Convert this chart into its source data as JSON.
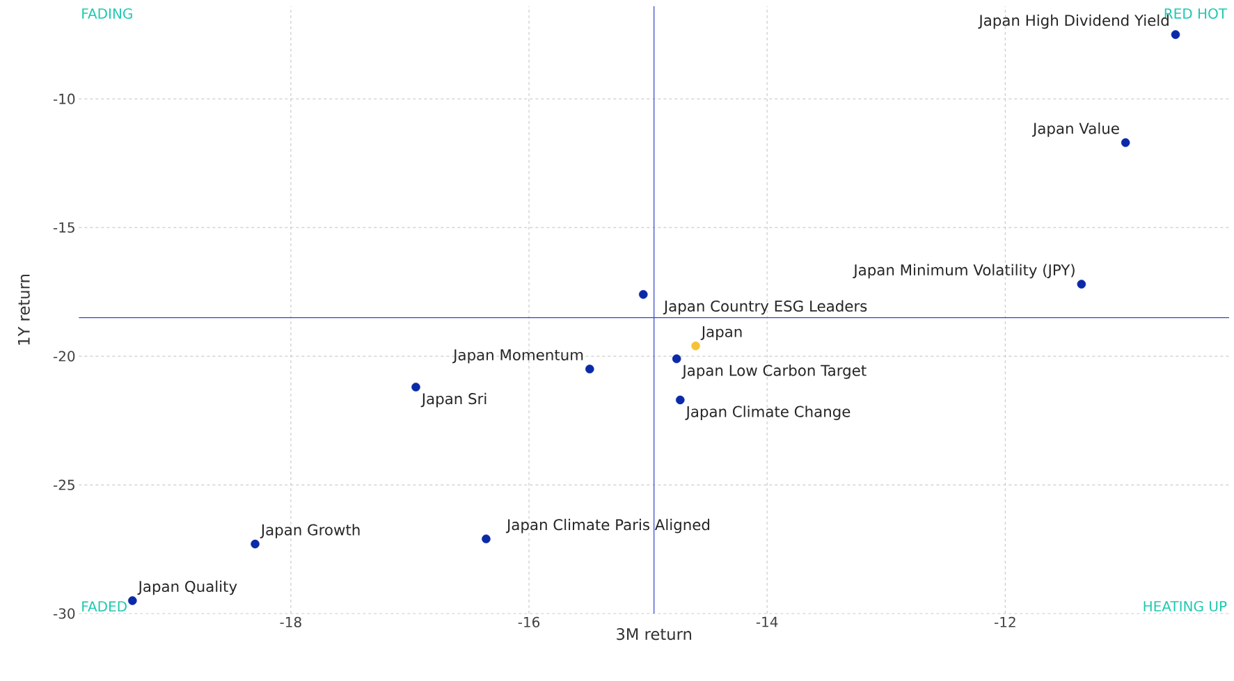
{
  "chart_data": {
    "type": "scatter",
    "xlabel": "3M return",
    "ylabel": "1Y return",
    "x": [
      -10.57,
      -10.99,
      -11.36,
      -15.04,
      -14.6,
      -14.76,
      -14.73,
      -15.49,
      -16.95,
      -16.36,
      -18.3,
      -19.33
    ],
    "values": [
      -7.5,
      -11.7,
      -17.2,
      -17.6,
      -19.6,
      -20.1,
      -21.7,
      -20.5,
      -21.2,
      -27.1,
      -27.3,
      -29.5
    ],
    "colors": [
      "#0a2aa8",
      "#0a2aa8",
      "#0a2aa8",
      "#0a2aa8",
      "#f7c236",
      "#0a2aa8",
      "#0a2aa8",
      "#0a2aa8",
      "#0a2aa8",
      "#0a2aa8",
      "#0a2aa8",
      "#0a2aa8"
    ],
    "marker": "circle",
    "grid": true,
    "xlim": [
      -19.78,
      -10.12
    ],
    "ylim": [
      -30,
      -6.4
    ],
    "xticks": [
      -18,
      -16,
      -14,
      -12
    ],
    "yticks": [
      -30,
      -25,
      -20,
      -15,
      -10
    ],
    "ref_lines": [
      {
        "axis": "x",
        "value": -14.95,
        "color": "#3344cc"
      },
      {
        "axis": "y",
        "value": -18.5,
        "color": "#3344cc"
      }
    ],
    "annotations": [
      "FADING",
      "RED HOT",
      "FADED",
      "HEATING UP",
      {
        "text": "Japan High Dividend Yield",
        "x": -10.57,
        "y": -7.5
      },
      {
        "text": "Japan Value",
        "x": -10.99,
        "y": -11.7
      },
      {
        "text": "Japan Minimum Volatility (JPY)",
        "x": -11.36,
        "y": -17.2
      },
      {
        "text": "Japan Country ESG Leaders",
        "x": -15.04,
        "y": -17.6
      },
      {
        "text": "Japan",
        "x": -14.6,
        "y": -19.6
      },
      {
        "text": "Japan Low Carbon Target",
        "x": -14.76,
        "y": -20.1
      },
      {
        "text": "Japan Climate Change",
        "x": -14.73,
        "y": -21.7
      },
      {
        "text": "Japan Momentum",
        "x": -15.49,
        "y": -20.5
      },
      {
        "text": "Japan Sri",
        "x": -16.95,
        "y": -21.2
      },
      {
        "text": "Japan Climate Paris Aligned",
        "x": -16.36,
        "y": -27.1
      },
      {
        "text": "Japan Growth",
        "x": -18.3,
        "y": -27.3
      },
      {
        "text": "Japan Quality",
        "x": -19.33,
        "y": -29.5
      }
    ]
  }
}
